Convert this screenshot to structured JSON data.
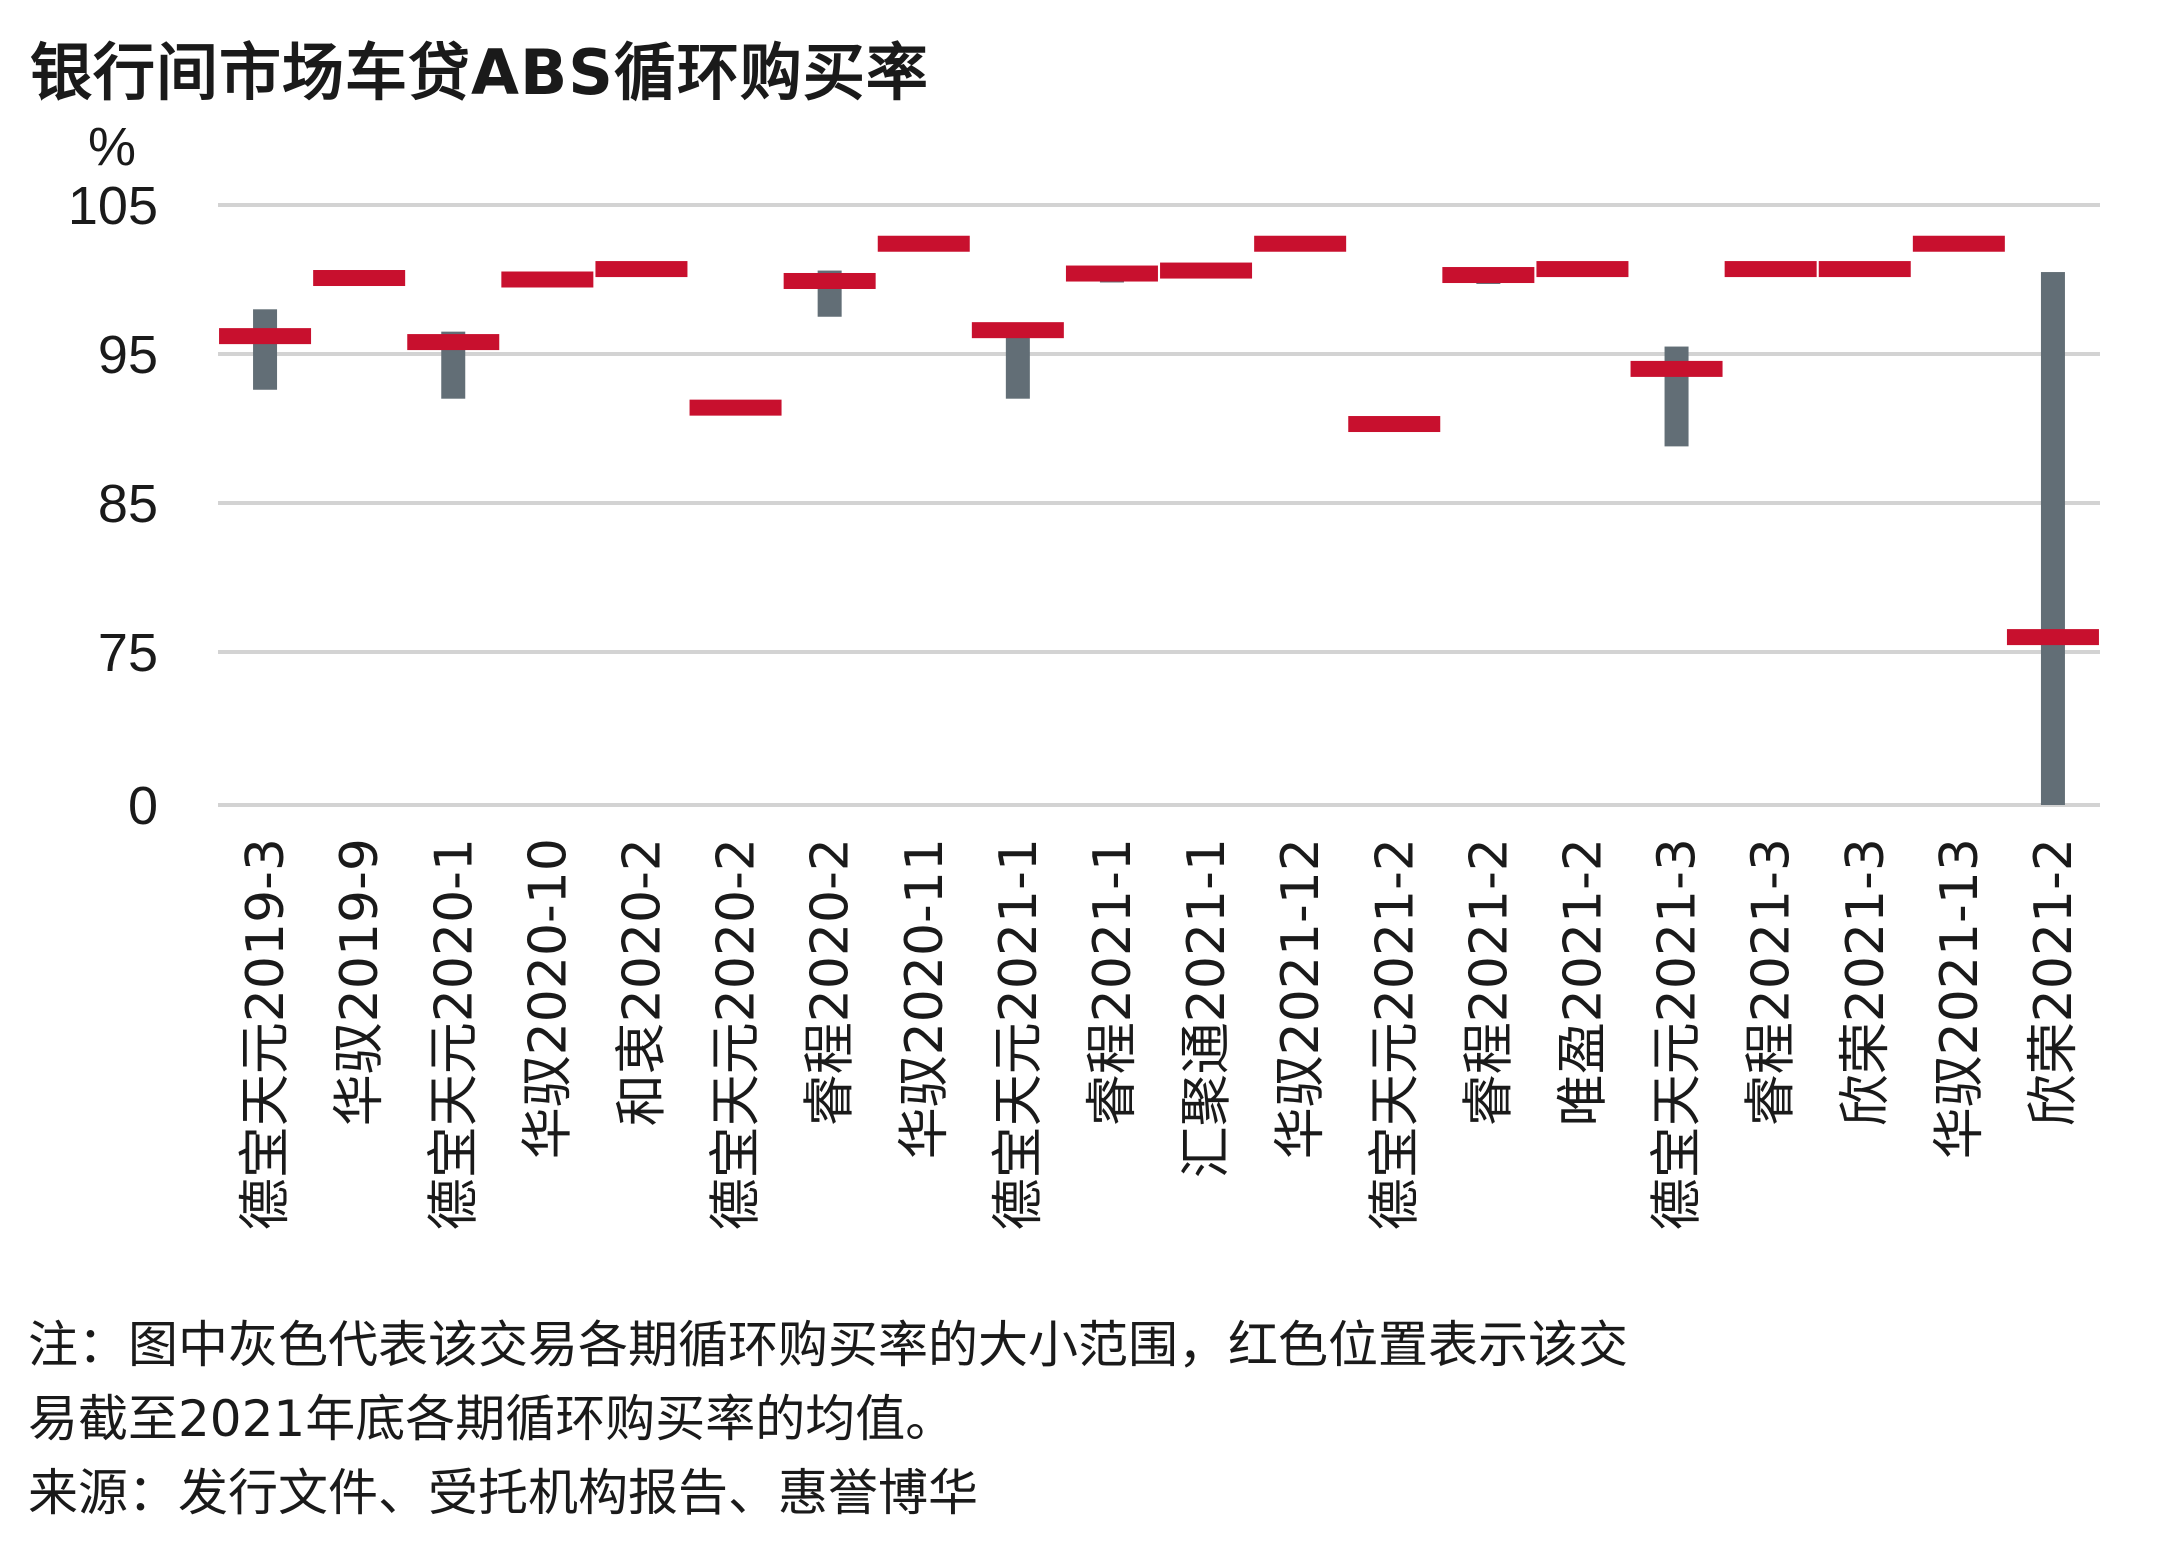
{
  "title": "银行间市场车贷ABS循环购买率",
  "note_line1": "注：图中灰色代表该交易各期循环购买率的大小范围，红色位置表示该交",
  "note_line2": "易截至2021年底各期循环购买率的均值。",
  "source": "来源：发行文件、受托机构报告、惠誉博华",
  "colors": {
    "range": "#626e76",
    "mean": "#c8102e",
    "grid": "#d3d3d3"
  },
  "chart_data": {
    "type": "bar",
    "subtype": "floating-range-with-mean-marker",
    "title": "银行间市场车贷ABS循环购买率",
    "ylabel": "%",
    "yticks": [
      "0",
      "75",
      "85",
      "95",
      "105"
    ],
    "y_scale": "broken axis between 0 and 75",
    "grid": true,
    "categories": [
      "德宝天元2019-3",
      "华驭2019-9",
      "德宝天元2020-1",
      "华驭2020-10",
      "和衷2020-2",
      "德宝天元2020-2",
      "睿程2020-2",
      "华驭2020-11",
      "德宝天元2021-1",
      "睿程2021-1",
      "汇聚通2021-1",
      "华驭2021-12",
      "德宝天元2021-2",
      "睿程2021-2",
      "唯盈2021-2",
      "德宝天元2021-3",
      "睿程2021-3",
      "欣荣2021-3",
      "华驭2021-13",
      "欣荣2021-2"
    ],
    "range_min": [
      92.6,
      99.8,
      92.0,
      null,
      null,
      null,
      97.5,
      null,
      92.0,
      99.8,
      null,
      null,
      null,
      99.7,
      null,
      88.8,
      null,
      null,
      null,
      0
    ],
    "range_max": [
      98.0,
      100.3,
      96.5,
      null,
      null,
      null,
      100.6,
      null,
      97.0,
      100.6,
      null,
      null,
      null,
      100.5,
      null,
      95.5,
      null,
      null,
      null,
      100.5
    ],
    "mean": [
      96.2,
      100.1,
      95.8,
      100.0,
      100.7,
      91.4,
      99.9,
      102.4,
      96.6,
      100.4,
      100.6,
      102.4,
      90.3,
      100.3,
      100.7,
      94.0,
      100.7,
      100.7,
      102.4,
      76.0
    ]
  }
}
